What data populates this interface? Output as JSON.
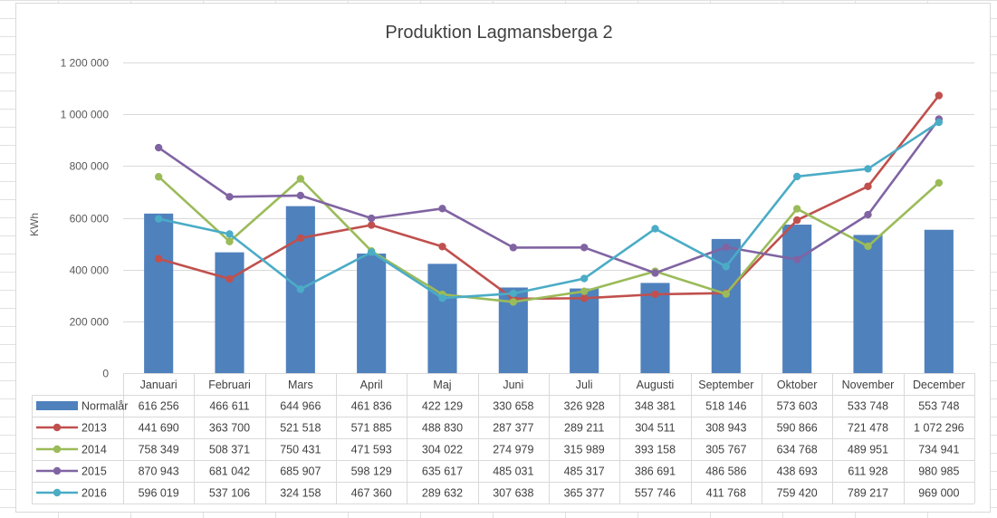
{
  "chart_data": {
    "type": "bar",
    "title": "Produktion Lagmansberga 2",
    "ylabel": "KWh",
    "ylim": [
      0,
      1200000
    ],
    "yticks": [
      0,
      200000,
      400000,
      600000,
      800000,
      1000000,
      1200000
    ],
    "ytick_labels": [
      "0",
      "200 000",
      "400 000",
      "600 000",
      "800 000",
      "1 000 000",
      "1 200 000"
    ],
    "grid": true,
    "legend": "data-table",
    "categories": [
      "Januari",
      "Februari",
      "Mars",
      "April",
      "Maj",
      "Juni",
      "Juli",
      "Augusti",
      "September",
      "Oktober",
      "November",
      "December"
    ],
    "series": [
      {
        "name": "Normalår",
        "type": "bar",
        "color": "#4f81bd",
        "values": [
          616256,
          466611,
          644966,
          461836,
          422129,
          330658,
          326928,
          348381,
          518146,
          573603,
          533748,
          553748
        ],
        "labels": [
          "616 256",
          "466 611",
          "644 966",
          "461 836",
          "422 129",
          "330 658",
          "326 928",
          "348 381",
          "518 146",
          "573 603",
          "533 748",
          "553 748"
        ]
      },
      {
        "name": "2013",
        "type": "line",
        "color": "#c0504d",
        "values": [
          441690,
          363700,
          521518,
          571885,
          488830,
          287377,
          289211,
          304511,
          308943,
          590866,
          721478,
          1072296
        ],
        "labels": [
          "441 690",
          "363 700",
          "521 518",
          "571 885",
          "488 830",
          "287 377",
          "289 211",
          "304 511",
          "308 943",
          "590 866",
          "721 478",
          "1 072 296"
        ]
      },
      {
        "name": "2014",
        "type": "line",
        "color": "#9bbb59",
        "values": [
          758349,
          508371,
          750431,
          471593,
          304022,
          274979,
          315989,
          393158,
          305767,
          634768,
          489951,
          734941
        ],
        "labels": [
          "758 349",
          "508 371",
          "750 431",
          "471 593",
          "304 022",
          "274 979",
          "315 989",
          "393 158",
          "305 767",
          "634 768",
          "489 951",
          "734 941"
        ]
      },
      {
        "name": "2015",
        "type": "line",
        "color": "#8064a2",
        "values": [
          870943,
          681042,
          685907,
          598129,
          635617,
          485031,
          485317,
          386691,
          486586,
          438693,
          611928,
          980985
        ],
        "labels": [
          "870 943",
          "681 042",
          "685 907",
          "598 129",
          "635 617",
          "485 031",
          "485 317",
          "386 691",
          "486 586",
          "438 693",
          "611 928",
          "980 985"
        ]
      },
      {
        "name": "2016",
        "type": "line",
        "color": "#4bacc6",
        "values": [
          596019,
          537106,
          324158,
          467360,
          289632,
          307638,
          365377,
          557746,
          411768,
          759420,
          789217,
          969000
        ],
        "labels": [
          "596 019",
          "537 106",
          "324 158",
          "467 360",
          "289 632",
          "307 638",
          "365 377",
          "557 746",
          "411 768",
          "759 420",
          "789 217",
          "969 000"
        ]
      }
    ]
  }
}
